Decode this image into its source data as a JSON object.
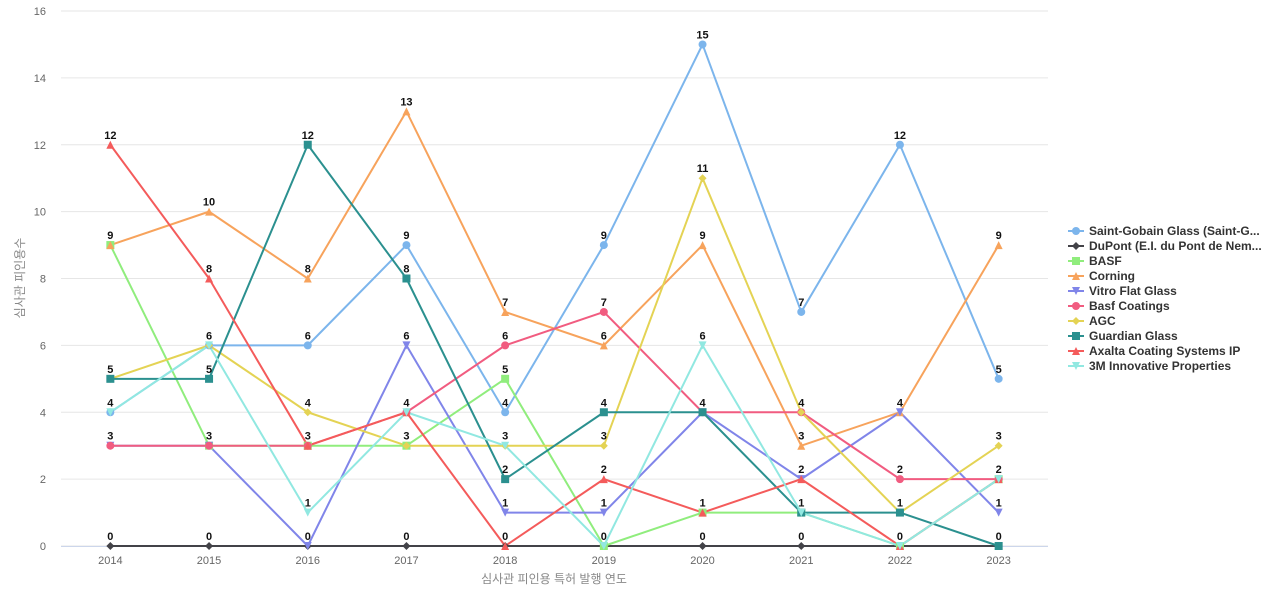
{
  "chart_data": {
    "type": "line",
    "title": "",
    "xlabel": "심사관 피인용 특허 발행 연도",
    "ylabel": "심사관 피인용수",
    "x": [
      "2014",
      "2015",
      "2016",
      "2017",
      "2018",
      "2019",
      "2020",
      "2021",
      "2022",
      "2023"
    ],
    "ylim": [
      0,
      16
    ],
    "yticks": [
      0,
      2,
      4,
      6,
      8,
      10,
      12,
      14,
      16
    ],
    "grid": true,
    "legend_position": "right",
    "series": [
      {
        "name": "Saint-Gobain Glass (Saint-G...",
        "color": "#7cb5ec",
        "marker": "circle",
        "values": [
          4,
          6,
          6,
          9,
          4,
          9,
          15,
          7,
          12,
          5
        ]
      },
      {
        "name": "DuPont (E.I. du Pont de Nem...",
        "color": "#434348",
        "marker": "diamond",
        "values": [
          0,
          0,
          0,
          0,
          0,
          0,
          0,
          0,
          0,
          0
        ]
      },
      {
        "name": "BASF",
        "color": "#90ed7d",
        "marker": "square",
        "values": [
          9,
          3,
          3,
          3,
          5,
          0,
          1,
          1,
          0,
          2
        ]
      },
      {
        "name": "Corning",
        "color": "#f7a35c",
        "marker": "triangle",
        "values": [
          9,
          10,
          8,
          13,
          7,
          6,
          9,
          3,
          4,
          9
        ]
      },
      {
        "name": "Vitro Flat Glass",
        "color": "#8085e9",
        "marker": "triangle-down",
        "values": [
          3,
          3,
          0,
          6,
          1,
          1,
          4,
          2,
          4,
          1
        ]
      },
      {
        "name": "Basf Coatings",
        "color": "#f15c80",
        "marker": "circle",
        "values": [
          3,
          3,
          3,
          4,
          6,
          7,
          4,
          4,
          2,
          2
        ]
      },
      {
        "name": "AGC",
        "color": "#e4d354",
        "marker": "diamond",
        "values": [
          5,
          6,
          4,
          3,
          3,
          3,
          11,
          4,
          1,
          3
        ]
      },
      {
        "name": "Guardian Glass",
        "color": "#2b908f",
        "marker": "square",
        "values": [
          5,
          5,
          12,
          8,
          2,
          4,
          4,
          1,
          1,
          0
        ]
      },
      {
        "name": "Axalta Coating Systems IP",
        "color": "#f45b5b",
        "marker": "triangle",
        "values": [
          12,
          8,
          3,
          4,
          0,
          2,
          1,
          2,
          0,
          2
        ]
      },
      {
        "name": "3M Innovative Properties",
        "color": "#91e8e1",
        "marker": "triangle-down",
        "values": [
          4,
          6,
          1,
          4,
          3,
          0,
          6,
          1,
          0,
          2
        ]
      }
    ],
    "data_labels": [
      {
        "x": "2014",
        "value": 12,
        "series": "Axalta Coating Systems IP"
      },
      {
        "x": "2014",
        "value": 9,
        "series": "Corning"
      },
      {
        "x": "2014",
        "value": 5,
        "series": "AGC"
      },
      {
        "x": "2014",
        "value": 4,
        "series": "Saint-Gobain Glass (Saint-G..."
      },
      {
        "x": "2014",
        "value": 3,
        "series": "Basf Coatings"
      },
      {
        "x": "2014",
        "value": 0,
        "series": "DuPont (E.I. du Pont de Nem..."
      },
      {
        "x": "2015",
        "value": 10,
        "series": "Corning"
      },
      {
        "x": "2015",
        "value": 8,
        "series": "Axalta Coating Systems IP"
      },
      {
        "x": "2015",
        "value": 6,
        "series": "AGC"
      },
      {
        "x": "2015",
        "value": 5,
        "series": "Guardian Glass"
      },
      {
        "x": "2015",
        "value": 3,
        "series": "Basf Coatings"
      },
      {
        "x": "2015",
        "value": 0,
        "series": "DuPont (E.I. du Pont de Nem..."
      },
      {
        "x": "2016",
        "value": 12,
        "series": "Guardian Glass"
      },
      {
        "x": "2016",
        "value": 8,
        "series": "Corning"
      },
      {
        "x": "2016",
        "value": 6,
        "series": "Saint-Gobain Glass (Saint-G..."
      },
      {
        "x": "2016",
        "value": 4,
        "series": "AGC"
      },
      {
        "x": "2016",
        "value": 3,
        "series": "Basf Coatings"
      },
      {
        "x": "2016",
        "value": 1,
        "series": "3M Innovative Properties"
      },
      {
        "x": "2016",
        "value": 0,
        "series": "Vitro Flat Glass"
      },
      {
        "x": "2017",
        "value": 13,
        "series": "Corning"
      },
      {
        "x": "2017",
        "value": 9,
        "series": "Saint-Gobain Glass (Saint-G..."
      },
      {
        "x": "2017",
        "value": 8,
        "series": "Guardian Glass"
      },
      {
        "x": "2017",
        "value": 6,
        "series": "Vitro Flat Glass"
      },
      {
        "x": "2017",
        "value": 4,
        "series": "Basf Coatings"
      },
      {
        "x": "2017",
        "value": 3,
        "series": "AGC"
      },
      {
        "x": "2017",
        "value": 0,
        "series": "DuPont (E.I. du Pont de Nem..."
      },
      {
        "x": "2018",
        "value": 7,
        "series": "Corning"
      },
      {
        "x": "2018",
        "value": 6,
        "series": "Basf Coatings"
      },
      {
        "x": "2018",
        "value": 5,
        "series": "BASF"
      },
      {
        "x": "2018",
        "value": 4,
        "series": "Saint-Gobain Glass (Saint-G..."
      },
      {
        "x": "2018",
        "value": 3,
        "series": "AGC"
      },
      {
        "x": "2018",
        "value": 2,
        "series": "Guardian Glass"
      },
      {
        "x": "2018",
        "value": 1,
        "series": "Vitro Flat Glass"
      },
      {
        "x": "2018",
        "value": 0,
        "series": "Axalta Coating Systems IP"
      },
      {
        "x": "2019",
        "value": 9,
        "series": "Saint-Gobain Glass (Saint-G..."
      },
      {
        "x": "2019",
        "value": 7,
        "series": "Basf Coatings"
      },
      {
        "x": "2019",
        "value": 6,
        "series": "Corning"
      },
      {
        "x": "2019",
        "value": 4,
        "series": "Guardian Glass"
      },
      {
        "x": "2019",
        "value": 3,
        "series": "AGC"
      },
      {
        "x": "2019",
        "value": 2,
        "series": "Axalta Coating Systems IP"
      },
      {
        "x": "2019",
        "value": 1,
        "series": "Vitro Flat Glass"
      },
      {
        "x": "2019",
        "value": 0,
        "series": "BASF"
      },
      {
        "x": "2020",
        "value": 15,
        "series": "Saint-Gobain Glass (Saint-G..."
      },
      {
        "x": "2020",
        "value": 11,
        "series": "AGC"
      },
      {
        "x": "2020",
        "value": 9,
        "series": "Corning"
      },
      {
        "x": "2020",
        "value": 6,
        "series": "3M Innovative Properties"
      },
      {
        "x": "2020",
        "value": 4,
        "series": "Guardian Glass"
      },
      {
        "x": "2020",
        "value": 1,
        "series": "BASF"
      },
      {
        "x": "2020",
        "value": 0,
        "series": "DuPont (E.I. du Pont de Nem..."
      },
      {
        "x": "2021",
        "value": 7,
        "series": "Saint-Gobain Glass (Saint-G..."
      },
      {
        "x": "2021",
        "value": 4,
        "series": "Basf Coatings"
      },
      {
        "x": "2021",
        "value": 3,
        "series": "Corning"
      },
      {
        "x": "2021",
        "value": 2,
        "series": "Axalta Coating Systems IP"
      },
      {
        "x": "2021",
        "value": 1,
        "series": "Guardian Glass"
      },
      {
        "x": "2021",
        "value": 0,
        "series": "DuPont (E.I. du Pont de Nem..."
      },
      {
        "x": "2022",
        "value": 12,
        "series": "Saint-Gobain Glass (Saint-G..."
      },
      {
        "x": "2022",
        "value": 4,
        "series": "Vitro Flat Glass"
      },
      {
        "x": "2022",
        "value": 2,
        "series": "Basf Coatings"
      },
      {
        "x": "2022",
        "value": 1,
        "series": "AGC"
      },
      {
        "x": "2022",
        "value": 0,
        "series": "Axalta Coating Systems IP"
      },
      {
        "x": "2023",
        "value": 9,
        "series": "Corning"
      },
      {
        "x": "2023",
        "value": 5,
        "series": "Saint-Gobain Glass (Saint-G..."
      },
      {
        "x": "2023",
        "value": 3,
        "series": "AGC"
      },
      {
        "x": "2023",
        "value": 2,
        "series": "Axalta Coating Systems IP"
      },
      {
        "x": "2023",
        "value": 1,
        "series": "Vitro Flat Glass"
      },
      {
        "x": "2023",
        "value": 0,
        "series": "Guardian Glass"
      }
    ]
  }
}
